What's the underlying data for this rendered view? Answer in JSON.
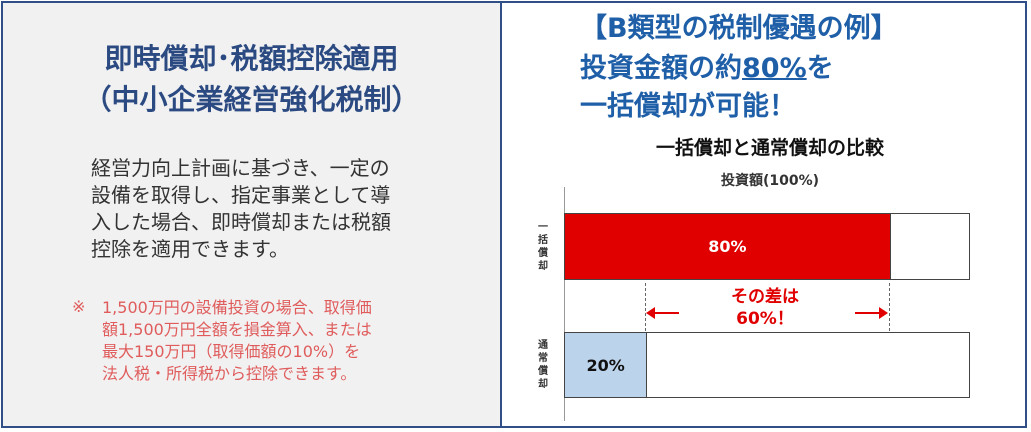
{
  "left_panel": {
    "title_line1": "即時償却･税額控除適用",
    "title_line2": "（中小企業経営強化税制）",
    "body_lines": [
      "経営力向上計画に基づき、一定の",
      "設備を取得し、指定事業として導",
      "入した場合、即時償却または税額",
      "控除を適用できます。"
    ],
    "note_mark": "※",
    "note_lines": [
      "1,500万円の設備投資の場合、取得価",
      "額1,500万円全額を損金算入、または",
      "最大150万円（取得価額の10%）を",
      "法人税・所得税から控除できます。"
    ]
  },
  "right_panel": {
    "headline1": "【B類型の税制優遇の例】",
    "headline2_prefix": "投資金額の約",
    "headline2_highlight": "80%",
    "headline2_suffix": "を",
    "headline3": "一括償却が可能！"
  },
  "colors": {
    "navy": "#2b4a82",
    "blue_text": "#1f5fa8",
    "red": "#e00000",
    "light_blue_bar": "#bcd3ec",
    "note_red": "#e05c5c"
  },
  "chart_data": {
    "type": "bar",
    "orientation": "horizontal",
    "title": "一括償却と通常償却の比較",
    "subtitle": "投資額(100%)",
    "categories": [
      "一括償却",
      "通常償却"
    ],
    "category_labels_vertical": [
      [
        "一",
        "括",
        "償",
        "却"
      ],
      [
        "通",
        "常",
        "償",
        "却"
      ]
    ],
    "values": [
      80,
      20
    ],
    "value_labels": [
      "80%",
      "20%"
    ],
    "total": 100,
    "xlim": [
      0,
      100
    ],
    "annotation": {
      "from": 20,
      "to": 80,
      "line1": "その差は",
      "line2": "60%！"
    }
  }
}
